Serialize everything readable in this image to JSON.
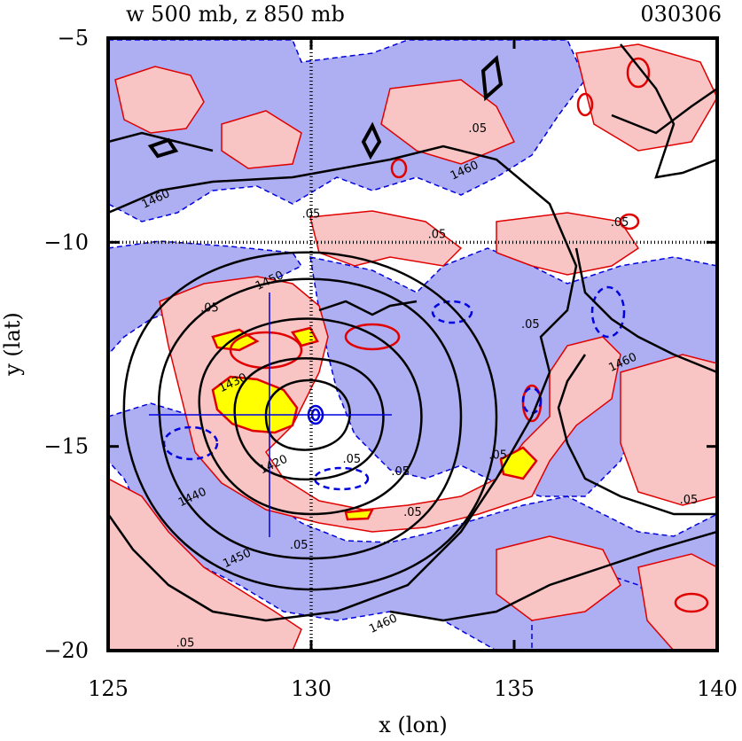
{
  "chart_data": {
    "type": "contour",
    "title_left": "w 500 mb, z 850 mb",
    "title_right": "030306",
    "xlabel": "x (lon)",
    "ylabel": "y (lat)",
    "xlim": [
      125,
      140
    ],
    "ylim": [
      -20,
      -5
    ],
    "xticks": [
      125,
      130,
      135,
      140
    ],
    "yticks": [
      -5,
      -10,
      -15,
      -20
    ],
    "xtick_labels": [
      "125",
      "130",
      "135",
      "140"
    ],
    "ytick_labels": [
      "−5",
      "−10",
      "−15",
      "−20"
    ],
    "grid_lines": {
      "x": [
        130
      ],
      "y": [
        -10
      ]
    },
    "colors": {
      "positive_fill": "#f9c4c4",
      "strong_positive_fill": "#ffff00",
      "negative_fill": "#aeaef2",
      "positive_contour": "#e00000",
      "negative_contour": "#0000e0",
      "height_contour": "#000000"
    },
    "storm_center": {
      "lon": 130.1,
      "lat": -14.2
    },
    "crosshair": {
      "lon": 129.0,
      "lat": -14.2
    },
    "height_contours": [
      {
        "level": 1420,
        "label": "1420",
        "label_at": {
          "lon": 129.1,
          "lat": -15.5
        }
      },
      {
        "level": 1430,
        "label": "1430",
        "label_at": {
          "lon": 128.1,
          "lat": -13.5
        }
      },
      {
        "level": 1440,
        "label": "1440",
        "label_at": {
          "lon": 127.1,
          "lat": -16.3
        }
      },
      {
        "level": 1450,
        "label": "1450",
        "label_at": {
          "lon": 129.0,
          "lat": -11.0
        }
      },
      {
        "level": 1450,
        "label": "1450",
        "label_at": {
          "lon": 128.2,
          "lat": -17.8
        }
      },
      {
        "level": 1460,
        "label": "1460",
        "label_at": {
          "lon": 131.8,
          "lat": -19.4
        }
      },
      {
        "level": 1460,
        "label": "1460",
        "label_at": {
          "lon": 133.8,
          "lat": -8.3
        }
      },
      {
        "level": 1460,
        "label": "1460",
        "label_at": {
          "lon": 126.2,
          "lat": -9.0
        }
      },
      {
        "level": 1460,
        "label": "1460",
        "label_at": {
          "lon": 137.7,
          "lat": -13.0
        }
      }
    ],
    "w_contour_labels": [
      {
        "text": ".05",
        "at": {
          "lon": 130.0,
          "lat": -9.4
        }
      },
      {
        "text": ".05",
        "at": {
          "lon": 131.0,
          "lat": -15.4
        }
      },
      {
        "text": ".05",
        "at": {
          "lon": 132.2,
          "lat": -15.7
        }
      },
      {
        "text": ".05",
        "at": {
          "lon": 132.5,
          "lat": -16.7
        }
      },
      {
        "text": ".05",
        "at": {
          "lon": 134.6,
          "lat": -15.3
        }
      },
      {
        "text": ".05",
        "at": {
          "lon": 137.6,
          "lat": -9.6
        }
      },
      {
        "text": ".05",
        "at": {
          "lon": 139.3,
          "lat": -16.4
        }
      },
      {
        "text": ".05",
        "at": {
          "lon": 126.9,
          "lat": -19.9
        }
      },
      {
        "text": ".05",
        "at": {
          "lon": 129.7,
          "lat": -17.5
        }
      },
      {
        "text": ".05",
        "at": {
          "lon": 134.1,
          "lat": -7.3
        }
      },
      {
        "text": ".05",
        "at": {
          "lon": 135.4,
          "lat": -12.1
        }
      },
      {
        "text": ".05",
        "at": {
          "lon": 127.5,
          "lat": -11.7
        }
      },
      {
        "text": ".05",
        "at": {
          "lon": 133.1,
          "lat": -9.9
        }
      }
    ]
  }
}
